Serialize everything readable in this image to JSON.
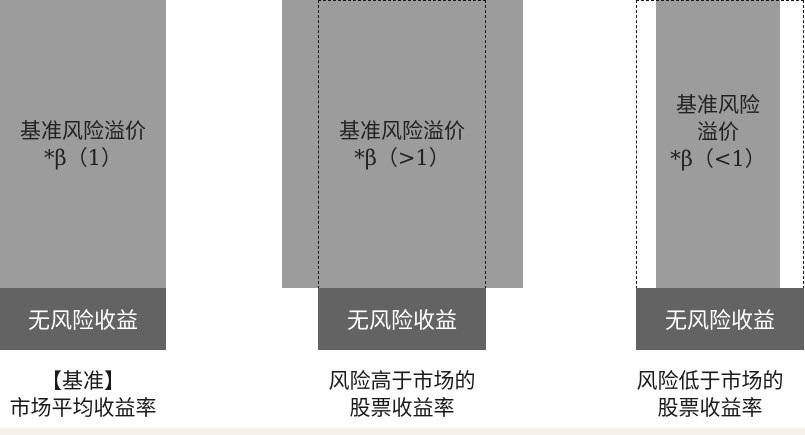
{
  "columns": [
    {
      "premium_lines": [
        "基准风险溢价",
        "*β（1）"
      ],
      "risk_free_label": "无风险收益",
      "caption_lines": [
        "【基准】",
        "市场平均收益率"
      ]
    },
    {
      "premium_lines": [
        "基准风险溢价",
        "*β（>1）"
      ],
      "risk_free_label": "无风险收益",
      "caption_lines": [
        "风险高于市场的",
        "股票收益率"
      ]
    },
    {
      "premium_lines": [
        "基准风险",
        "溢价",
        "*β（<1）"
      ],
      "risk_free_label": "无风险收益",
      "caption_lines": [
        "风险低于市场的",
        "股票收益率"
      ]
    }
  ],
  "colors": {
    "premium_fill": "#9c9c9c",
    "risk_free_fill": "#636363",
    "dashed_border": "#1a1a1a",
    "footer_band": "#f6f1ea"
  }
}
